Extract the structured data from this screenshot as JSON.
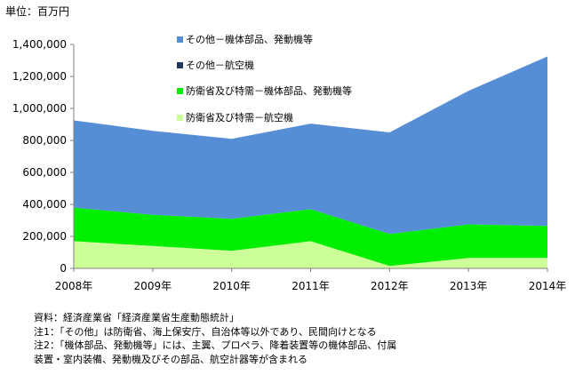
{
  "unit_label": "単位：百万円",
  "notes": [
    "資料：経済産業省「経済産業省生産動態統計」",
    "注1：「その他」は防衛省、海上保安庁、自治体等以外であり、民間向けとなる",
    "注2：「機体部品、発動機等」には、主翼、プロペラ、降着装置等の機体部品、付属",
    "装置・室内装備、発動機及びその部品、航空計器等が含まれる"
  ],
  "chart_data": {
    "type": "area",
    "stacked": true,
    "categories": [
      "2008年",
      "2009年",
      "2010年",
      "2011年",
      "2012年",
      "2013年",
      "2014年"
    ],
    "series": [
      {
        "name": "防衛省及び特需－航空機",
        "color": "#ccff99",
        "values": [
          170000,
          140000,
          110000,
          170000,
          15000,
          65000,
          65000
        ]
      },
      {
        "name": "防衛省及び特需－機体部品、発動機等",
        "color": "#00ee00",
        "values": [
          210000,
          195000,
          200000,
          200000,
          200000,
          210000,
          200000
        ]
      },
      {
        "name": "その他－航空機",
        "color": "#1f3864",
        "values": [
          0,
          0,
          0,
          0,
          0,
          0,
          0
        ]
      },
      {
        "name": "その他－機体部品、発動機等",
        "color": "#558ed5",
        "values": [
          545000,
          525000,
          500000,
          535000,
          635000,
          835000,
          1060000
        ]
      }
    ],
    "legend_order": [
      "その他－機体部品、発動機等",
      "その他－航空機",
      "防衛省及び特需－機体部品、発動機等",
      "防衛省及び特需－航空機"
    ],
    "ylim": [
      0,
      1400000
    ],
    "yticks": [
      0,
      200000,
      400000,
      600000,
      800000,
      1000000,
      1200000,
      1400000
    ],
    "ytick_labels": [
      "0",
      "200,000",
      "400,000",
      "600,000",
      "800,000",
      "1,000,000",
      "1,200,000",
      "1,400,000"
    ],
    "grid": false,
    "legend_position": "top-center"
  }
}
